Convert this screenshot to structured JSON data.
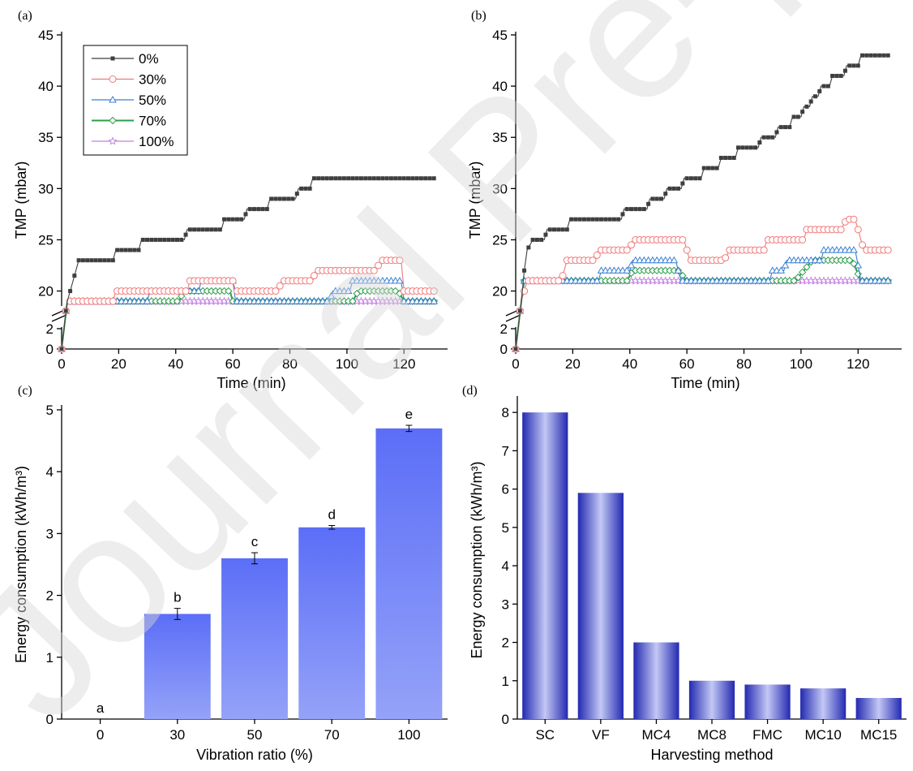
{
  "watermark": "Journal Pre-proof",
  "colors": {
    "s0": "#3f3f3f",
    "s30": "#f07878",
    "s50": "#3a7fd5",
    "s70": "#2e9e4a",
    "s100": "#c37fe0",
    "bar_top": "#5b6ef7",
    "bar_bottom": "#95a2f8",
    "bar_d_dark": "#2329b0",
    "bar_d_light": "#c3c8f5"
  },
  "chart_data": [
    {
      "panel": "(a)",
      "type": "line",
      "xlabel": "Time (min)",
      "ylabel": "TMP (mbar)",
      "xlim": [
        0,
        133
      ],
      "xticks": [
        0,
        20,
        40,
        60,
        80,
        100,
        120
      ],
      "yticks_upper": [
        20,
        25,
        30,
        35,
        40,
        45
      ],
      "yticks_lower": [
        0,
        2
      ],
      "axis_break": [
        2,
        18.7
      ],
      "legend_position": "top-left",
      "series": [
        {
          "name": "0%",
          "color_key": "s0",
          "marker": "square",
          "points": [
            [
              0,
              0
            ],
            [
              2,
              19
            ],
            [
              4,
              21
            ],
            [
              6,
              23
            ],
            [
              18,
              23
            ],
            [
              19,
              24
            ],
            [
              27,
              24
            ],
            [
              28,
              25
            ],
            [
              43,
              25
            ],
            [
              44,
              26
            ],
            [
              56,
              26
            ],
            [
              57,
              27
            ],
            [
              64,
              27
            ],
            [
              65,
              28
            ],
            [
              72,
              28
            ],
            [
              73,
              29
            ],
            [
              82,
              29
            ],
            [
              83,
              30
            ],
            [
              87,
              30
            ],
            [
              88,
              31
            ],
            [
              131,
              31
            ]
          ]
        },
        {
          "name": "30%",
          "color_key": "s30",
          "marker": "circle",
          "points": [
            [
              0,
              0
            ],
            [
              2,
              19
            ],
            [
              18,
              19
            ],
            [
              19,
              20
            ],
            [
              44,
              20
            ],
            [
              45,
              21
            ],
            [
              60,
              21
            ],
            [
              61,
              20
            ],
            [
              76,
              20
            ],
            [
              77,
              21
            ],
            [
              88,
              21
            ],
            [
              89,
              22
            ],
            [
              110,
              22
            ],
            [
              112,
              23
            ],
            [
              119,
              23
            ],
            [
              120,
              20
            ],
            [
              131,
              20
            ]
          ]
        },
        {
          "name": "50%",
          "color_key": "s50",
          "marker": "triangle",
          "points": [
            [
              0,
              0
            ],
            [
              2,
              19
            ],
            [
              30,
              19
            ],
            [
              31,
              20
            ],
            [
              43,
              20
            ],
            [
              44,
              20
            ],
            [
              48,
              20
            ],
            [
              49,
              21
            ],
            [
              60,
              21
            ],
            [
              61,
              19
            ],
            [
              94,
              19
            ],
            [
              95,
              20
            ],
            [
              101,
              20
            ],
            [
              102,
              21
            ],
            [
              119,
              21
            ],
            [
              120,
              19
            ],
            [
              131,
              19
            ]
          ]
        },
        {
          "name": "70%",
          "color_key": "s70",
          "marker": "diamond",
          "points": [
            [
              0,
              0
            ],
            [
              2,
              19
            ],
            [
              41,
              19
            ],
            [
              43,
              20
            ],
            [
              59,
              20
            ],
            [
              60,
              19
            ],
            [
              102,
              19
            ],
            [
              104,
              20
            ],
            [
              118,
              20
            ],
            [
              120,
              19
            ],
            [
              131,
              19
            ]
          ]
        },
        {
          "name": "100%",
          "color_key": "s100",
          "marker": "star",
          "points": [
            [
              0,
              0
            ],
            [
              2,
              19
            ],
            [
              131,
              19
            ]
          ]
        }
      ]
    },
    {
      "panel": "(b)",
      "type": "line",
      "xlabel": "Time (min)",
      "ylabel": "TMP (mbar)",
      "xlim": [
        0,
        133
      ],
      "xticks": [
        0,
        20,
        40,
        60,
        80,
        100,
        120
      ],
      "yticks_upper": [
        20,
        25,
        30,
        35,
        40,
        45
      ],
      "yticks_lower": [
        0,
        2
      ],
      "axis_break": [
        2,
        18.7
      ],
      "series": [
        {
          "name": "0%",
          "color_key": "s0",
          "marker": "square",
          "points": [
            [
              0,
              0
            ],
            [
              2,
              19
            ],
            [
              3,
              22
            ],
            [
              4,
              24
            ],
            [
              6,
              25
            ],
            [
              10,
              25
            ],
            [
              11,
              26
            ],
            [
              18,
              26
            ],
            [
              19,
              27
            ],
            [
              37,
              27
            ],
            [
              38,
              28
            ],
            [
              46,
              28
            ],
            [
              47,
              29
            ],
            [
              52,
              29
            ],
            [
              53,
              30
            ],
            [
              58,
              30
            ],
            [
              59,
              31
            ],
            [
              65,
              31
            ],
            [
              66,
              32
            ],
            [
              71,
              32
            ],
            [
              72,
              33
            ],
            [
              77,
              33
            ],
            [
              78,
              34
            ],
            [
              85,
              34
            ],
            [
              86,
              35
            ],
            [
              91,
              35
            ],
            [
              92,
              36
            ],
            [
              96,
              36
            ],
            [
              97,
              37
            ],
            [
              100,
              37
            ],
            [
              101,
              38
            ],
            [
              103,
              38
            ],
            [
              104,
              39
            ],
            [
              106,
              39
            ],
            [
              107,
              40
            ],
            [
              110,
              40
            ],
            [
              111,
              41
            ],
            [
              115,
              41
            ],
            [
              116,
              42
            ],
            [
              120,
              42
            ],
            [
              121,
              43
            ],
            [
              131,
              43
            ]
          ]
        },
        {
          "name": "30%",
          "color_key": "s30",
          "marker": "circle",
          "points": [
            [
              0,
              0
            ],
            [
              2,
              19
            ],
            [
              3,
              20
            ],
            [
              4,
              21
            ],
            [
              16,
              21
            ],
            [
              17,
              22
            ],
            [
              18,
              23
            ],
            [
              28,
              23
            ],
            [
              29,
              24
            ],
            [
              40,
              24
            ],
            [
              41,
              25
            ],
            [
              59,
              25
            ],
            [
              61,
              23
            ],
            [
              73,
              23
            ],
            [
              75,
              24
            ],
            [
              87,
              24
            ],
            [
              88,
              25
            ],
            [
              101,
              25
            ],
            [
              102,
              26
            ],
            [
              114,
              26
            ],
            [
              116,
              27
            ],
            [
              119,
              27
            ],
            [
              122,
              24
            ],
            [
              131,
              24
            ]
          ]
        },
        {
          "name": "50%",
          "color_key": "s50",
          "marker": "triangle",
          "points": [
            [
              0,
              0
            ],
            [
              2,
              19
            ],
            [
              3,
              21
            ],
            [
              29,
              21
            ],
            [
              30,
              22
            ],
            [
              40,
              22
            ],
            [
              41,
              23
            ],
            [
              56,
              23
            ],
            [
              58,
              21
            ],
            [
              89,
              21
            ],
            [
              90,
              22
            ],
            [
              94,
              22
            ],
            [
              95,
              23
            ],
            [
              107,
              23
            ],
            [
              108,
              24
            ],
            [
              119,
              24
            ],
            [
              121,
              21
            ],
            [
              131,
              21
            ]
          ]
        },
        {
          "name": "70%",
          "color_key": "s70",
          "marker": "diamond",
          "points": [
            [
              0,
              0
            ],
            [
              2,
              19
            ],
            [
              3,
              21
            ],
            [
              39,
              21
            ],
            [
              41,
              22
            ],
            [
              57,
              22
            ],
            [
              60,
              21
            ],
            [
              98,
              21
            ],
            [
              101,
              22
            ],
            [
              104,
              23
            ],
            [
              118,
              23
            ],
            [
              121,
              21
            ],
            [
              131,
              21
            ]
          ]
        },
        {
          "name": "100%",
          "color_key": "s100",
          "marker": "star",
          "points": [
            [
              0,
              0
            ],
            [
              2,
              19
            ],
            [
              3,
              21
            ],
            [
              131,
              21
            ]
          ]
        }
      ]
    },
    {
      "panel": "(c)",
      "type": "bar",
      "xlabel": "Vibration ratio (%)",
      "ylabel": "Energy consumption (kWh/m³)",
      "ylim": [
        0,
        5
      ],
      "yticks": [
        0,
        1,
        2,
        3,
        4,
        5
      ],
      "categories": [
        "0",
        "30",
        "50",
        "70",
        "100"
      ],
      "values": [
        0,
        1.7,
        2.6,
        3.1,
        4.7
      ],
      "errors": [
        0,
        0.09,
        0.09,
        0.03,
        0.05
      ],
      "letters": [
        "a",
        "b",
        "c",
        "d",
        "e"
      ]
    },
    {
      "panel": "(d)",
      "type": "bar",
      "xlabel": "Harvesting method",
      "ylabel": "Energy consumption (kWh/m³)",
      "ylim": [
        0,
        8.3
      ],
      "yticks": [
        0,
        1,
        2,
        3,
        4,
        5,
        6,
        7,
        8
      ],
      "categories": [
        "SC",
        "VF",
        "MC4",
        "MC8",
        "FMC",
        "MC10",
        "MC15"
      ],
      "values": [
        8.0,
        5.9,
        2.0,
        1.0,
        0.9,
        0.8,
        0.55
      ]
    }
  ]
}
